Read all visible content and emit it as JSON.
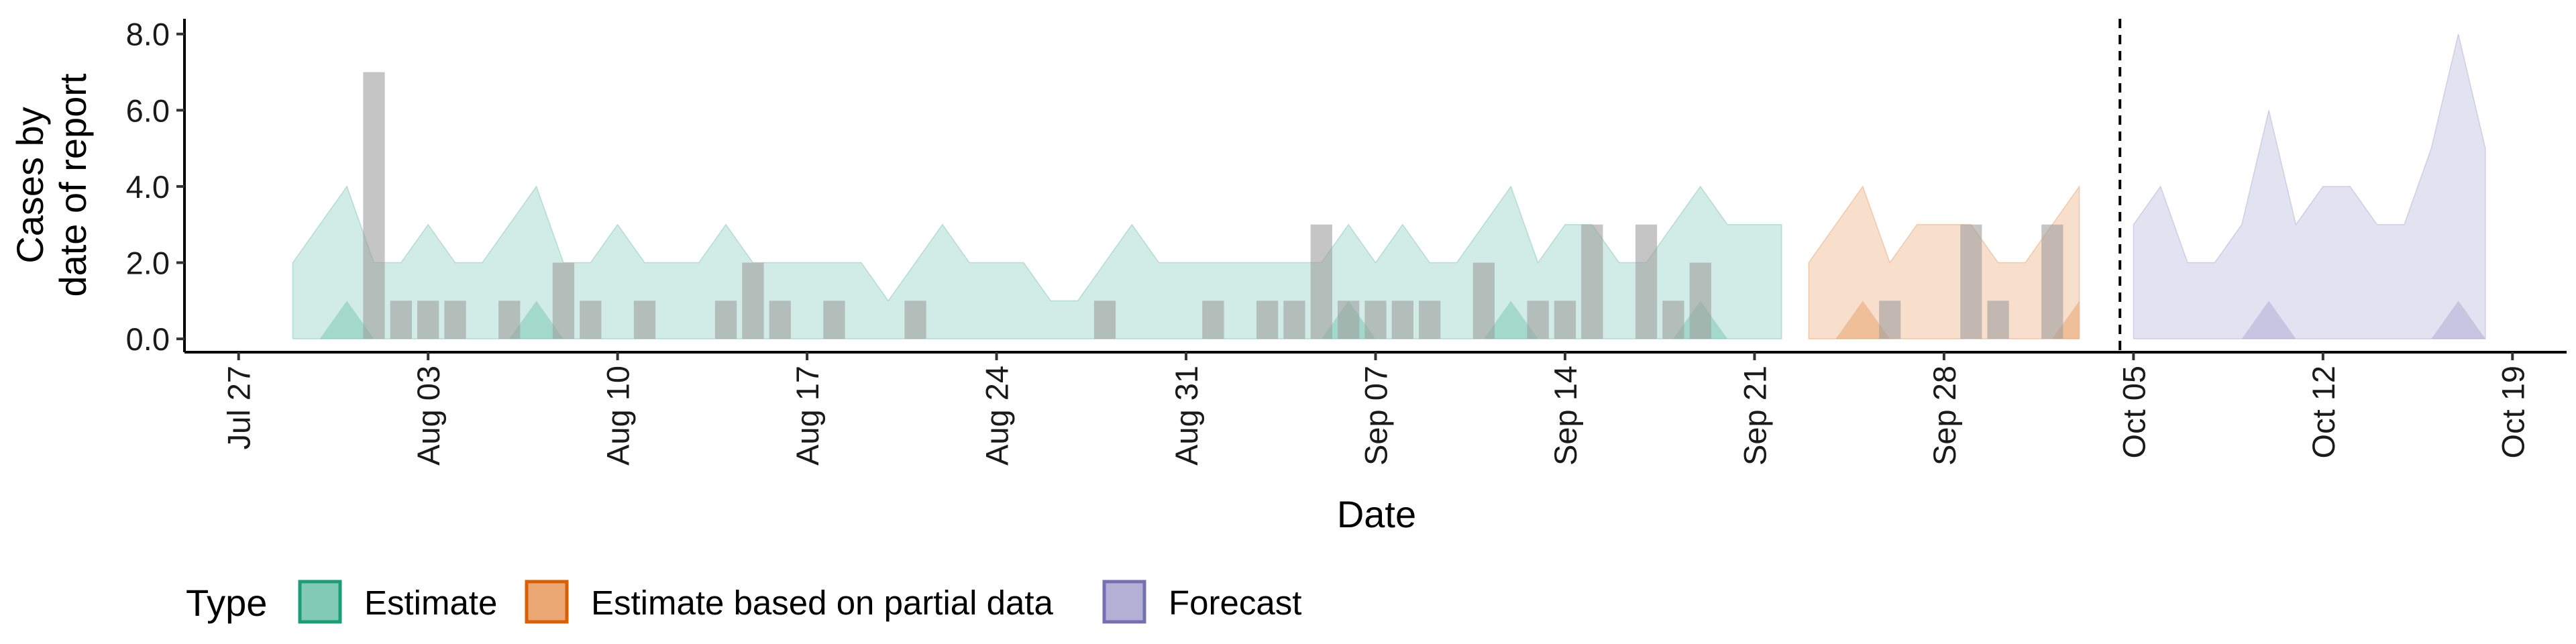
{
  "chart_data": {
    "type": "area",
    "xlabel": "Date",
    "ylabel": [
      "Cases by",
      "date of report"
    ],
    "ylim": [
      -0.35,
      8.4
    ],
    "y_ticks": [
      0,
      2,
      4,
      6,
      8
    ],
    "y_tick_labels": [
      "0.0",
      "2.0",
      "4.0",
      "6.0",
      "8.0"
    ],
    "x_range": [
      "2020-07-25",
      "2020-10-21"
    ],
    "x_ticks": [
      "2020-07-27",
      "2020-08-03",
      "2020-08-10",
      "2020-08-17",
      "2020-08-24",
      "2020-08-31",
      "2020-09-07",
      "2020-09-14",
      "2020-09-21",
      "2020-09-28",
      "2020-10-05",
      "2020-10-12",
      "2020-10-19"
    ],
    "x_tick_labels": [
      "Jul 27",
      "Aug 03",
      "Aug 10",
      "Aug 17",
      "Aug 24",
      "Aug 31",
      "Sep 07",
      "Sep 14",
      "Sep 21",
      "Sep 28",
      "Oct 05",
      "Oct 12",
      "Oct 19"
    ],
    "forecast_date": "2020-10-04",
    "legend_title": "Type",
    "legend_position": "bottom",
    "series": [
      {
        "name": "Estimate",
        "color": "#1b9e77",
        "x": [
          "2020-07-29",
          "2020-07-30",
          "2020-07-31",
          "2020-08-01",
          "2020-08-02",
          "2020-08-03",
          "2020-08-04",
          "2020-08-05",
          "2020-08-06",
          "2020-08-07",
          "2020-08-08",
          "2020-08-09",
          "2020-08-10",
          "2020-08-11",
          "2020-08-12",
          "2020-08-13",
          "2020-08-14",
          "2020-08-15",
          "2020-08-16",
          "2020-08-17",
          "2020-08-18",
          "2020-08-19",
          "2020-08-20",
          "2020-08-21",
          "2020-08-22",
          "2020-08-23",
          "2020-08-24",
          "2020-08-25",
          "2020-08-26",
          "2020-08-27",
          "2020-08-28",
          "2020-08-29",
          "2020-08-30",
          "2020-08-31",
          "2020-09-01",
          "2020-09-02",
          "2020-09-03",
          "2020-09-04",
          "2020-09-05",
          "2020-09-06",
          "2020-09-07",
          "2020-09-08",
          "2020-09-09",
          "2020-09-10",
          "2020-09-11",
          "2020-09-12",
          "2020-09-13",
          "2020-09-14",
          "2020-09-15",
          "2020-09-16",
          "2020-09-17",
          "2020-09-18",
          "2020-09-19",
          "2020-09-20",
          "2020-09-21",
          "2020-09-22"
        ],
        "upper": [
          2,
          3,
          4,
          2,
          2,
          3,
          2,
          2,
          3,
          4,
          2,
          2,
          3,
          2,
          2,
          2,
          3,
          2,
          2,
          2,
          2,
          2,
          1,
          2,
          3,
          2,
          2,
          2,
          1,
          1,
          2,
          3,
          2,
          2,
          2,
          2,
          2,
          2,
          2,
          3,
          2,
          3,
          2,
          2,
          3,
          4,
          2,
          3,
          3,
          2,
          2,
          3,
          4,
          3,
          3,
          3
        ],
        "lower": [
          0,
          0,
          0,
          0,
          0,
          0,
          0,
          0,
          0,
          0,
          0,
          0,
          0,
          0,
          0,
          0,
          0,
          0,
          0,
          0,
          0,
          0,
          0,
          0,
          0,
          0,
          0,
          0,
          0,
          0,
          0,
          0,
          0,
          0,
          0,
          0,
          0,
          0,
          0,
          0,
          0,
          0,
          0,
          0,
          0,
          0,
          0,
          0,
          0,
          0,
          0,
          0,
          0,
          0,
          0,
          0
        ],
        "inner_upper": [
          0,
          0,
          1,
          0,
          0,
          0,
          0,
          0,
          0,
          1,
          0,
          0,
          0,
          0,
          0,
          0,
          0,
          0,
          0,
          0,
          0,
          0,
          0,
          0,
          0,
          0,
          0,
          0,
          0,
          0,
          0,
          0,
          0,
          0,
          0,
          0,
          0,
          0,
          0,
          1,
          0,
          0,
          0,
          0,
          0,
          1,
          0,
          0,
          0,
          0,
          0,
          0,
          1,
          0,
          0,
          0
        ]
      },
      {
        "name": "Estimate based on partial data",
        "color": "#d95f02",
        "x": [
          "2020-09-23",
          "2020-09-24",
          "2020-09-25",
          "2020-09-26",
          "2020-09-27",
          "2020-09-28",
          "2020-09-29",
          "2020-09-30",
          "2020-10-01",
          "2020-10-02",
          "2020-10-03"
        ],
        "upper": [
          2,
          3,
          4,
          2,
          3,
          3,
          3,
          2,
          2,
          3,
          4
        ],
        "lower": [
          0,
          0,
          0,
          0,
          0,
          0,
          0,
          0,
          0,
          0,
          0
        ],
        "inner_upper": [
          0,
          0,
          1,
          0,
          0,
          0,
          0,
          0,
          0,
          0,
          1
        ]
      },
      {
        "name": "Forecast",
        "color": "#7570b3",
        "x": [
          "2020-10-05",
          "2020-10-06",
          "2020-10-07",
          "2020-10-08",
          "2020-10-09",
          "2020-10-10",
          "2020-10-11",
          "2020-10-12",
          "2020-10-13",
          "2020-10-14",
          "2020-10-15",
          "2020-10-16",
          "2020-10-17",
          "2020-10-18"
        ],
        "upper": [
          3,
          4,
          2,
          2,
          3,
          6,
          3,
          4,
          4,
          3,
          3,
          5,
          8,
          5
        ],
        "lower": [
          0,
          0,
          0,
          0,
          0,
          0,
          0,
          0,
          0,
          0,
          0,
          0,
          0,
          0
        ],
        "inner_upper": [
          0,
          0,
          0,
          0,
          0,
          1,
          0,
          0,
          0,
          0,
          0,
          0,
          1,
          0
        ]
      }
    ],
    "reported_cases": {
      "color": "#9e9e9e",
      "x": [
        "2020-07-31",
        "2020-08-01",
        "2020-08-02",
        "2020-08-03",
        "2020-08-04",
        "2020-08-06",
        "2020-08-08",
        "2020-08-09",
        "2020-08-11",
        "2020-08-14",
        "2020-08-15",
        "2020-08-16",
        "2020-08-18",
        "2020-08-21",
        "2020-08-28",
        "2020-09-01",
        "2020-09-03",
        "2020-09-04",
        "2020-09-05",
        "2020-09-06",
        "2020-09-07",
        "2020-09-08",
        "2020-09-09",
        "2020-09-10",
        "2020-09-11",
        "2020-09-12",
        "2020-09-13",
        "2020-09-14",
        "2020-09-15",
        "2020-09-16",
        "2020-09-17",
        "2020-09-18",
        "2020-09-19",
        "2020-09-20",
        "2020-09-26",
        "2020-09-29",
        "2020-09-30",
        "2020-10-02"
      ],
      "values": [
        0,
        7,
        1,
        1,
        1,
        1,
        2,
        1,
        1,
        1,
        2,
        1,
        1,
        1,
        1,
        1,
        1,
        1,
        3,
        1,
        1,
        1,
        1,
        0,
        2,
        0,
        1,
        1,
        3,
        0,
        3,
        1,
        2,
        0,
        1,
        3,
        1,
        3
      ]
    }
  }
}
